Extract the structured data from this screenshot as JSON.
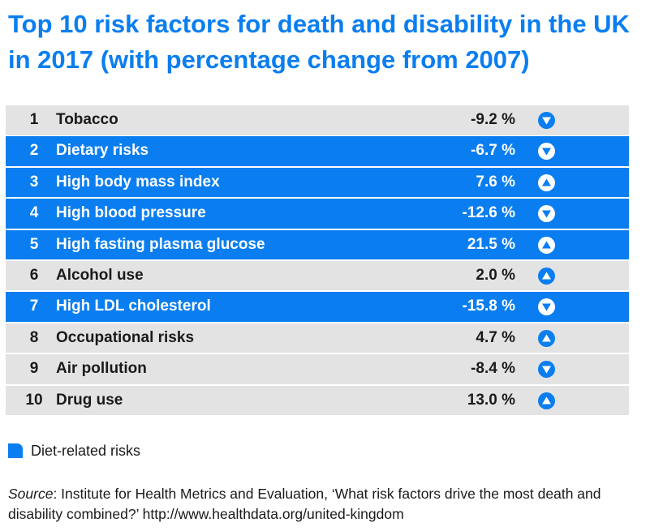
{
  "title": "Top 10 risk factors for death and disability in the UK in 2017 (with percentage change from 2007)",
  "colors": {
    "diet_highlight": "#0a7ef0",
    "row_default": "#e3e3e3",
    "arrow_icon": "#0a7ef0"
  },
  "chart_data": {
    "type": "table",
    "title": "Top 10 risk factors for death and disability in the UK in 2017 (with percentage change from 2007)",
    "columns": [
      "rank",
      "risk factor",
      "percentage change",
      "direction"
    ],
    "rows": [
      {
        "rank": "1",
        "label": "Tobacco",
        "value_text": "-9.2 %",
        "value": -9.2,
        "direction": "down",
        "diet_related": false
      },
      {
        "rank": "2",
        "label": "Dietary risks",
        "value_text": "-6.7 %",
        "value": -6.7,
        "direction": "down",
        "diet_related": true
      },
      {
        "rank": "3",
        "label": "High body mass index",
        "value_text": "7.6 %",
        "value": 7.6,
        "direction": "up",
        "diet_related": true
      },
      {
        "rank": "4",
        "label": "High blood pressure",
        "value_text": "-12.6 %",
        "value": -12.6,
        "direction": "down",
        "diet_related": true
      },
      {
        "rank": "5",
        "label": "High fasting plasma glucose",
        "value_text": "21.5 %",
        "value": 21.5,
        "direction": "up",
        "diet_related": true
      },
      {
        "rank": "6",
        "label": "Alcohol use",
        "value_text": "2.0 %",
        "value": 2.0,
        "direction": "up",
        "diet_related": false
      },
      {
        "rank": "7",
        "label": "High LDL cholesterol",
        "value_text": "-15.8 %",
        "value": -15.8,
        "direction": "down",
        "diet_related": true
      },
      {
        "rank": "8",
        "label": "Occupational risks",
        "value_text": "4.7 %",
        "value": 4.7,
        "direction": "up",
        "diet_related": false
      },
      {
        "rank": "9",
        "label": "Air pollution",
        "value_text": "-8.4 %",
        "value": -8.4,
        "direction": "down",
        "diet_related": false
      },
      {
        "rank": "10",
        "label": "Drug use",
        "value_text": "13.0 %",
        "value": 13.0,
        "direction": "up",
        "diet_related": false
      }
    ],
    "legend": [
      {
        "label": "Diet-related risks",
        "color": "#0a7ef0"
      }
    ]
  },
  "legend": {
    "label": "Diet-related risks"
  },
  "source": {
    "prefix": "Source",
    "text": ": Institute for Health Metrics and Evaluation, ‘What risk factors drive the most death and disability combined?’ http://www.healthdata.org/united-kingdom"
  }
}
